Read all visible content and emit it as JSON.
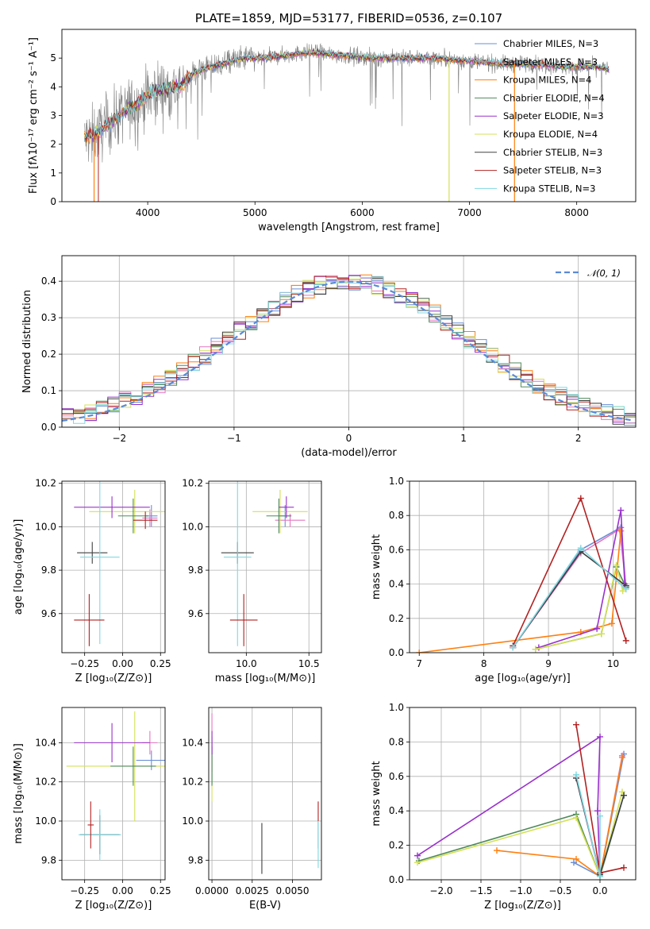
{
  "chart_data": [
    {
      "id": "spectrum",
      "type": "line",
      "title": "PLATE=1859, MJD=53177, FIBERID=0536, z=0.107",
      "xlabel": "wavelength [Angstrom, rest frame]",
      "ylabel": "Flux [fλ10⁻¹⁷ erg cm⁻² s⁻¹ A⁻¹]",
      "xlim": [
        3200,
        8550
      ],
      "ylim": [
        0,
        6
      ],
      "xticks": [
        4000,
        5000,
        6000,
        7000,
        8000
      ],
      "yticks": [
        0,
        1,
        2,
        3,
        4,
        5
      ],
      "legend_position": "right",
      "observed_color": "#808080",
      "series": [
        {
          "name": "Chabrier MILES, N_SSP=3",
          "color": "#6a8fd6"
        },
        {
          "name": "Salpeter MILES, N_SSP=3",
          "color": "#e377c2"
        },
        {
          "name": "Kroupa MILES, N_SSP=4",
          "color": "#ff7f0e"
        },
        {
          "name": "Chabrier ELODIE, N_SSP=4",
          "color": "#4f8a5b"
        },
        {
          "name": "Salpeter ELODIE, N_SSP=3",
          "color": "#9932cc"
        },
        {
          "name": "Kroupa ELODIE, N_SSP=4",
          "color": "#d4e157"
        },
        {
          "name": "Chabrier STELIB, N_SSP=3",
          "color": "#404040"
        },
        {
          "name": "Salpeter STELIB, N_SSP=3",
          "color": "#b22222"
        },
        {
          "name": "Kroupa STELIB, N_SSP=3",
          "color": "#80d8e0"
        }
      ],
      "model_curve": {
        "x": [
          3410,
          3500,
          3600,
          3700,
          3800,
          3900,
          4000,
          4100,
          4200,
          4300,
          4400,
          4500,
          4700,
          4900,
          5100,
          5300,
          5500,
          5800,
          6100,
          6400,
          6700,
          7000,
          7300,
          7600,
          7900,
          8200,
          8300
        ],
        "y": [
          2.2,
          2.3,
          2.6,
          2.9,
          3.2,
          3.4,
          3.7,
          3.9,
          3.9,
          4.0,
          4.4,
          4.6,
          4.8,
          5.0,
          5.0,
          5.1,
          5.2,
          5.1,
          5.0,
          5.0,
          5.0,
          4.9,
          4.8,
          4.8,
          4.7,
          4.7,
          4.6
        ]
      }
    },
    {
      "id": "residuals",
      "type": "line",
      "xlabel": "(data-model)/error",
      "ylabel": "Normed distribution",
      "xlim": [
        -2.5,
        2.5
      ],
      "ylim": [
        0,
        0.47
      ],
      "xticks": [
        -2,
        -1,
        0,
        1,
        2
      ],
      "yticks": [
        0.0,
        0.1,
        0.2,
        0.3,
        0.4
      ],
      "grid": true,
      "legend": "𝒩(0, 1)",
      "legend_position": "top-right",
      "gaussian_color": "#5a8ad8"
    },
    {
      "id": "age_vs_Z",
      "type": "scatter",
      "xlabel": "Z [log₁₀(Z/Z⊙)]",
      "ylabel": "age  [log₁₀(age/yr)]",
      "xlim": [
        -0.4,
        0.28
      ],
      "ylim": [
        9.42,
        10.21
      ],
      "xticks": [
        -0.25,
        0.0,
        0.25
      ],
      "xtick_labels": [
        "−0.25",
        "0.00",
        "0.25"
      ],
      "yticks": [
        9.6,
        9.8,
        10.0,
        10.2
      ],
      "grid": true,
      "points": [
        {
          "x": 0.19,
          "y": 10.05,
          "xerr": 0.04,
          "yerr": 0.05,
          "color": "#6a8fd6"
        },
        {
          "x": 0.18,
          "y": 10.04,
          "xerr": 0.05,
          "yerr": 0.04,
          "color": "#e377c2"
        },
        {
          "x": 0.08,
          "y": 10.07,
          "xerr": 0.3,
          "yerr": 0.1,
          "color": "#d4e157"
        },
        {
          "x": 0.07,
          "y": 10.05,
          "xerr": 0.1,
          "yerr": 0.08,
          "color": "#4f8a5b"
        },
        {
          "x": 0.15,
          "y": 10.03,
          "xerr": 0.08,
          "yerr": 0.04,
          "color": "#b22222"
        },
        {
          "x": -0.07,
          "y": 10.09,
          "xerr": 0.25,
          "yerr": 0.05,
          "color": "#9932cc"
        },
        {
          "x": -0.2,
          "y": 9.88,
          "xerr": 0.1,
          "yerr": 0.05,
          "color": "#404040"
        },
        {
          "x": -0.15,
          "y": 9.86,
          "xerr": 0.13,
          "yerr": 0.4,
          "color": "#80d8e0"
        },
        {
          "x": -0.22,
          "y": 9.57,
          "xerr": 0.1,
          "yerr": 0.12,
          "color": "#b22222"
        }
      ]
    },
    {
      "id": "age_vs_mass",
      "type": "scatter",
      "xlabel": "mass [log₁₀(M/M⊙)]",
      "xlim": [
        9.7,
        10.6
      ],
      "ylim": [
        9.42,
        10.21
      ],
      "xticks": [
        10.0,
        10.5
      ],
      "xtick_labels": [
        "10.0",
        "10.5"
      ],
      "yticks": [
        9.6,
        9.8,
        10.0,
        10.2
      ],
      "grid": true,
      "points": [
        {
          "x": 10.31,
          "y": 10.05,
          "xerr": 0.05,
          "yerr": 0.05,
          "color": "#6a8fd6"
        },
        {
          "x": 10.35,
          "y": 10.03,
          "xerr": 0.12,
          "yerr": 0.03,
          "color": "#e377c2"
        },
        {
          "x": 10.27,
          "y": 10.07,
          "xerr": 0.22,
          "yerr": 0.1,
          "color": "#d4e157"
        },
        {
          "x": 10.26,
          "y": 10.05,
          "xerr": 0.1,
          "yerr": 0.08,
          "color": "#4f8a5b"
        },
        {
          "x": 10.32,
          "y": 10.09,
          "xerr": 0.06,
          "yerr": 0.05,
          "color": "#9932cc"
        },
        {
          "x": 9.93,
          "y": 9.88,
          "xerr": 0.13,
          "yerr": 0.05,
          "color": "#404040"
        },
        {
          "x": 9.93,
          "y": 9.86,
          "xerr": 0.11,
          "yerr": 0.41,
          "color": "#80d8e0"
        },
        {
          "x": 9.98,
          "y": 9.57,
          "xerr": 0.11,
          "yerr": 0.12,
          "color": "#b22222"
        }
      ]
    },
    {
      "id": "weight_vs_age",
      "type": "line",
      "xlabel": "age  [log₁₀(age/yr)]",
      "ylabel": "mass weight",
      "xlim": [
        6.85,
        10.35
      ],
      "ylim": [
        0,
        1
      ],
      "xticks": [
        7,
        8,
        9,
        10
      ],
      "yticks": [
        0.0,
        0.2,
        0.4,
        0.6,
        0.8,
        1.0
      ],
      "grid": true,
      "series": [
        {
          "color": "#6a8fd6",
          "x": [
            8.45,
            9.5,
            10.12,
            10.2
          ],
          "y": [
            0.03,
            0.6,
            0.73,
            0.38
          ]
        },
        {
          "color": "#e377c2",
          "x": [
            8.45,
            9.5,
            10.1,
            10.2
          ],
          "y": [
            0.03,
            0.58,
            0.72,
            0.39
          ]
        },
        {
          "color": "#ff7f0e",
          "x": [
            7.0,
            9.5,
            9.98,
            10.12
          ],
          "y": [
            0.0,
            0.12,
            0.17,
            0.71
          ]
        },
        {
          "color": "#4f8a5b",
          "x": [
            8.8,
            9.82,
            10.05,
            10.2
          ],
          "y": [
            0.02,
            0.11,
            0.5,
            0.38
          ]
        },
        {
          "color": "#9932cc",
          "x": [
            8.85,
            9.75,
            10.12,
            10.18
          ],
          "y": [
            0.03,
            0.14,
            0.83,
            0.4
          ]
        },
        {
          "color": "#d4e157",
          "x": [
            8.8,
            9.82,
            10.05,
            10.15
          ],
          "y": [
            0.02,
            0.11,
            0.51,
            0.36
          ]
        },
        {
          "color": "#404040",
          "x": [
            8.45,
            9.5,
            10.2
          ],
          "y": [
            0.03,
            0.59,
            0.39
          ]
        },
        {
          "color": "#b22222",
          "x": [
            8.45,
            9.5,
            10.2
          ],
          "y": [
            0.04,
            0.9,
            0.07
          ]
        },
        {
          "color": "#80d8e0",
          "x": [
            8.45,
            9.5,
            10.2
          ],
          "y": [
            0.03,
            0.61,
            0.37
          ]
        }
      ]
    },
    {
      "id": "mass_vs_Z",
      "type": "scatter",
      "xlabel": "Z [log₁₀(Z/Z⊙)]",
      "ylabel": "mass [log₁₀(M/M⊙)]",
      "xlim": [
        -0.4,
        0.28
      ],
      "ylim": [
        9.7,
        10.58
      ],
      "xticks": [
        -0.25,
        0.0,
        0.25
      ],
      "xtick_labels": [
        "−0.25",
        "0.00",
        "0.25"
      ],
      "yticks": [
        9.8,
        10.0,
        10.2,
        10.4
      ],
      "grid": true,
      "points": [
        {
          "x": 0.19,
          "y": 10.31,
          "xerr": 0.1,
          "yerr": 0.05,
          "color": "#6a8fd6"
        },
        {
          "x": 0.18,
          "y": 10.4,
          "xerr": 0.05,
          "yerr": 0.06,
          "color": "#e377c2"
        },
        {
          "x": 0.08,
          "y": 10.28,
          "xerr": 0.45,
          "yerr": 0.28,
          "color": "#d4e157"
        },
        {
          "x": 0.07,
          "y": 10.28,
          "xerr": 0.15,
          "yerr": 0.1,
          "color": "#4f8a5b"
        },
        {
          "x": -0.07,
          "y": 10.4,
          "xerr": 0.25,
          "yerr": 0.1,
          "color": "#9932cc"
        },
        {
          "x": -0.15,
          "y": 9.93,
          "xerr": 0.13,
          "yerr": 0.1,
          "color": "#404040"
        },
        {
          "x": -0.15,
          "y": 9.93,
          "xerr": 0.14,
          "yerr": 0.13,
          "color": "#80d8e0"
        },
        {
          "x": -0.21,
          "y": 9.98,
          "xerr": 0.02,
          "yerr": 0.12,
          "color": "#b22222"
        }
      ]
    },
    {
      "id": "mass_vs_ebv",
      "type": "scatter",
      "xlabel": "E(B-V)",
      "xlim": [
        -0.0002,
        0.0068
      ],
      "ylim": [
        9.7,
        10.58
      ],
      "xticks": [
        0.0,
        0.0025,
        0.005
      ],
      "xtick_labels": [
        "0.0000",
        "0.0025",
        "0.0050"
      ],
      "yticks": [
        9.8,
        10.0,
        10.2,
        10.4
      ],
      "grid": true,
      "points": [
        {
          "x": 0.0,
          "y": 10.31,
          "xerr": 0,
          "yerr": 0.12,
          "color": "#6a8fd6"
        },
        {
          "x": 0.0,
          "y": 10.4,
          "xerr": 0,
          "yerr": 0.15,
          "color": "#e377c2"
        },
        {
          "x": 0.0,
          "y": 10.28,
          "xerr": 0,
          "yerr": 0.18,
          "color": "#d4e157"
        },
        {
          "x": 0.0,
          "y": 10.28,
          "xerr": 0,
          "yerr": 0.1,
          "color": "#4f8a5b"
        },
        {
          "x": 0.0,
          "y": 10.4,
          "xerr": 0,
          "yerr": 0.06,
          "color": "#9932cc"
        },
        {
          "x": 0.0031,
          "y": 9.86,
          "xerr": 0,
          "yerr": 0.13,
          "color": "#404040"
        },
        {
          "x": 0.0066,
          "y": 9.98,
          "xerr": 0,
          "yerr": 0.12,
          "color": "#b22222"
        },
        {
          "x": 0.0066,
          "y": 9.88,
          "xerr": 0,
          "yerr": 0.12,
          "color": "#80d8e0"
        }
      ]
    },
    {
      "id": "weight_vs_Z",
      "type": "line",
      "xlabel": "Z [log₁₀(Z/Z⊙)]",
      "ylabel": "mass weight",
      "xlim": [
        -2.4,
        0.45
      ],
      "ylim": [
        0,
        1
      ],
      "xticks": [
        -2.0,
        -1.5,
        -1.0,
        -0.5,
        0.0
      ],
      "xtick_labels": [
        "−2.0",
        "−1.5",
        "−1.0",
        "−0.5",
        "0.0"
      ],
      "yticks": [
        0.0,
        0.2,
        0.4,
        0.6,
        0.8,
        1.0
      ],
      "grid": true,
      "series": [
        {
          "color": "#6a8fd6",
          "x": [
            -0.33,
            0.0,
            0.3
          ],
          "y": [
            0.1,
            0.02,
            0.73
          ]
        },
        {
          "color": "#e377c2",
          "x": [
            -0.3,
            0.0,
            0.28
          ],
          "y": [
            0.59,
            0.02,
            0.72
          ]
        },
        {
          "color": "#ff7f0e",
          "x": [
            -1.3,
            -0.3,
            0.0,
            0.28
          ],
          "y": [
            0.17,
            0.12,
            0.02,
            0.71
          ]
        },
        {
          "color": "#4f8a5b",
          "x": [
            -2.28,
            -0.3,
            0.0,
            0.3
          ],
          "y": [
            0.11,
            0.38,
            0.02,
            0.49
          ]
        },
        {
          "color": "#9932cc",
          "x": [
            -2.3,
            0.0,
            -0.03,
            0.0
          ],
          "y": [
            0.14,
            0.83,
            0.4,
            0.03
          ]
        },
        {
          "color": "#d4e157",
          "x": [
            -2.3,
            -0.3,
            0.0,
            0.28
          ],
          "y": [
            0.1,
            0.36,
            0.02,
            0.51
          ]
        },
        {
          "color": "#404040",
          "x": [
            -0.3,
            0.0,
            0.3
          ],
          "y": [
            0.59,
            0.03,
            0.49
          ]
        },
        {
          "color": "#b22222",
          "x": [
            -0.3,
            0.0,
            0.3
          ],
          "y": [
            0.9,
            0.04,
            0.07
          ]
        },
        {
          "color": "#80d8e0",
          "x": [
            -0.3,
            0.0,
            0.0
          ],
          "y": [
            0.61,
            0.02,
            0.37
          ]
        }
      ]
    }
  ]
}
